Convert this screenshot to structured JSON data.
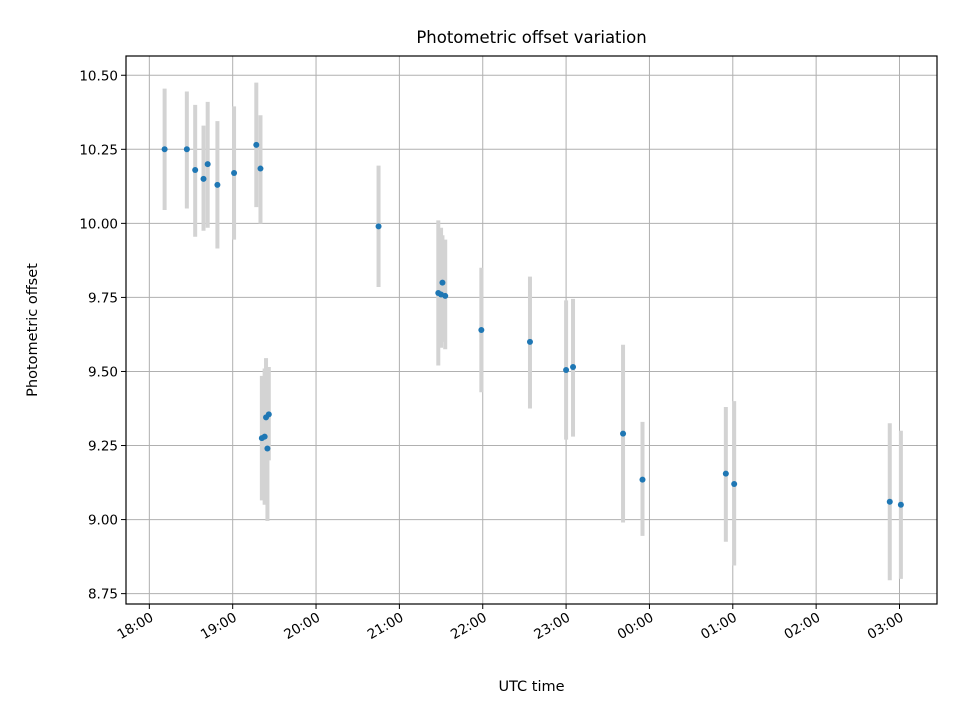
{
  "chart_data": {
    "type": "scatter",
    "title": "Photometric offset variation",
    "xlabel": "UTC time",
    "ylabel": "Photometric offset",
    "x_unit": "hours after 18:00",
    "xlim": [
      -0.28,
      9.45
    ],
    "ylim": [
      8.715,
      10.565
    ],
    "x_ticks": [
      {
        "value": 0,
        "label": "18:00"
      },
      {
        "value": 1,
        "label": "19:00"
      },
      {
        "value": 2,
        "label": "20:00"
      },
      {
        "value": 3,
        "label": "21:00"
      },
      {
        "value": 4,
        "label": "22:00"
      },
      {
        "value": 5,
        "label": "23:00"
      },
      {
        "value": 6,
        "label": "00:00"
      },
      {
        "value": 7,
        "label": "01:00"
      },
      {
        "value": 8,
        "label": "02:00"
      },
      {
        "value": 9,
        "label": "03:00"
      }
    ],
    "y_ticks": [
      {
        "value": 8.75,
        "label": "8.75"
      },
      {
        "value": 9.0,
        "label": "9.00"
      },
      {
        "value": 9.25,
        "label": "9.25"
      },
      {
        "value": 9.5,
        "label": "9.50"
      },
      {
        "value": 9.75,
        "label": "9.75"
      },
      {
        "value": 10.0,
        "label": "10.00"
      },
      {
        "value": 10.25,
        "label": "10.25"
      },
      {
        "value": 10.5,
        "label": "10.50"
      }
    ],
    "grid": true,
    "colors": {
      "point": "#1f77b4",
      "errorbar": "#d3d3d3"
    },
    "points": [
      {
        "time": "18:11",
        "y": 10.25,
        "low": 10.045,
        "high": 10.455
      },
      {
        "time": "18:27",
        "y": 10.25,
        "low": 10.05,
        "high": 10.445
      },
      {
        "time": "18:33",
        "y": 10.18,
        "low": 9.955,
        "high": 10.4
      },
      {
        "time": "18:39",
        "y": 10.15,
        "low": 9.975,
        "high": 10.33
      },
      {
        "time": "18:42",
        "y": 10.2,
        "low": 9.985,
        "high": 10.41
      },
      {
        "time": "18:49",
        "y": 10.13,
        "low": 9.915,
        "high": 10.345
      },
      {
        "time": "19:01",
        "y": 10.17,
        "low": 9.945,
        "high": 10.395
      },
      {
        "time": "19:17",
        "y": 10.265,
        "low": 10.055,
        "high": 10.475
      },
      {
        "time": "19:20",
        "y": 10.185,
        "low": 10.0,
        "high": 10.365
      },
      {
        "time": "19:21",
        "y": 9.275,
        "low": 9.065,
        "high": 9.485
      },
      {
        "time": "19:23",
        "y": 9.28,
        "low": 9.05,
        "high": 9.51
      },
      {
        "time": "19:24",
        "y": 9.345,
        "low": 9.145,
        "high": 9.545
      },
      {
        "time": "19:25",
        "y": 9.24,
        "low": 8.995,
        "high": 9.51
      },
      {
        "time": "19:26",
        "y": 9.355,
        "low": 9.2,
        "high": 9.515
      },
      {
        "time": "20:45",
        "y": 9.99,
        "low": 9.785,
        "high": 10.195
      },
      {
        "time": "21:28",
        "y": 9.765,
        "low": 9.52,
        "high": 10.01
      },
      {
        "time": "21:30",
        "y": 9.76,
        "low": 9.58,
        "high": 9.985
      },
      {
        "time": "21:31",
        "y": 9.8,
        "low": 9.6,
        "high": 9.96
      },
      {
        "time": "21:33",
        "y": 9.755,
        "low": 9.575,
        "high": 9.945
      },
      {
        "time": "21:59",
        "y": 9.64,
        "low": 9.43,
        "high": 9.85
      },
      {
        "time": "22:34",
        "y": 9.6,
        "low": 9.375,
        "high": 9.82
      },
      {
        "time": "23:00",
        "y": 9.505,
        "low": 9.27,
        "high": 9.74
      },
      {
        "time": "23:05",
        "y": 9.515,
        "low": 9.28,
        "high": 9.745
      },
      {
        "time": "23:41",
        "y": 9.29,
        "low": 8.99,
        "high": 9.59
      },
      {
        "time": "23:55",
        "y": 9.135,
        "low": 8.945,
        "high": 9.33
      },
      {
        "time": "00:55",
        "y": 9.155,
        "low": 8.925,
        "high": 9.38
      },
      {
        "time": "01:01",
        "y": 9.12,
        "low": 8.845,
        "high": 9.4
      },
      {
        "time": "02:53",
        "y": 9.06,
        "low": 8.795,
        "high": 9.325
      },
      {
        "time": "03:01",
        "y": 9.05,
        "low": 8.8,
        "high": 9.3
      }
    ]
  }
}
